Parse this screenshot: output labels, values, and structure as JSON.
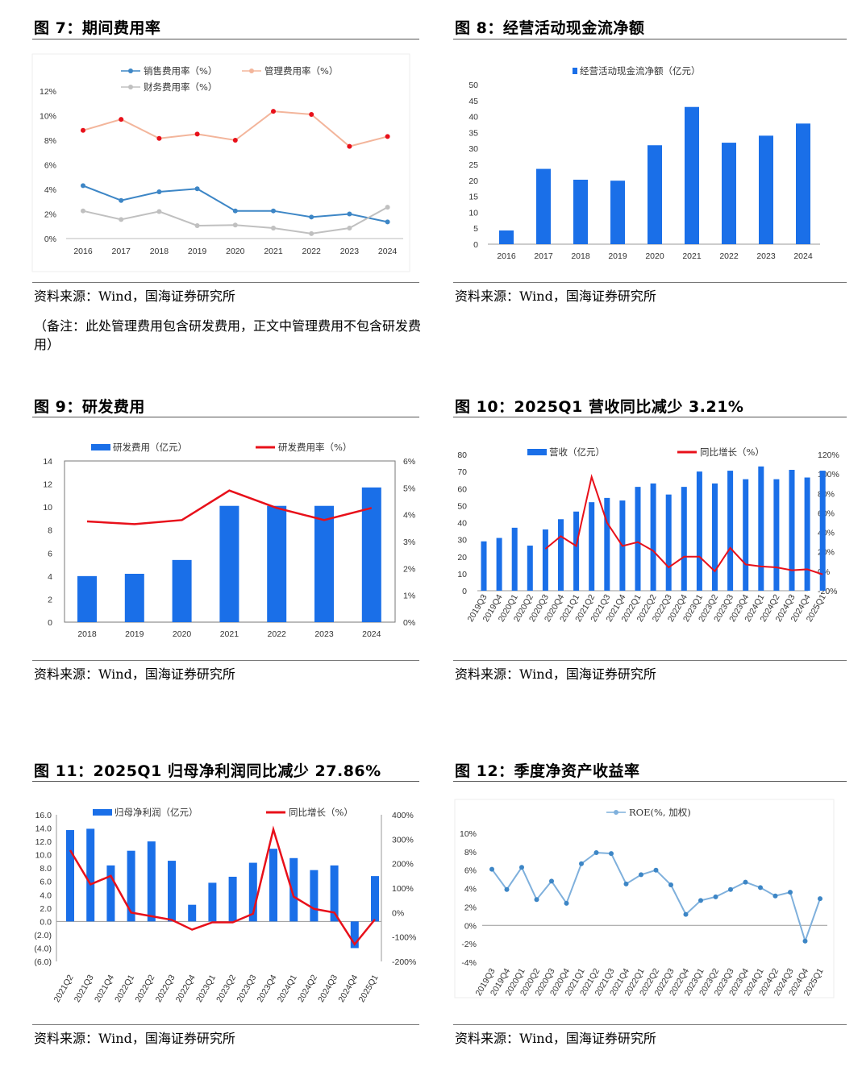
{
  "source_text": "资料来源：Wind，国海证券研究所",
  "note7": "（备注：此处管理费用包含研发费用，正文中管理费用不包含研发费用）",
  "fig7_title": "图 7：期间费用率",
  "fig8_title": "图 8：经营活动现金流净额",
  "fig9_title": "图 9：研发费用",
  "fig10_title": "图 10：2025Q1 营收同比减少 3.21%",
  "fig11_title": "图 11：2025Q1 归母净利润同比减少 27.86%",
  "fig12_title": "图 12：季度净资产收益率",
  "colors": {
    "blue": "#1a6fe8",
    "red": "#e8101a",
    "salmon": "#f3b59b",
    "steel": "#3d86c6",
    "gray": "#c0c0c0",
    "lightblue": "#7fb0dc"
  },
  "chart_data": [
    {
      "id": "fig7",
      "type": "line",
      "categories": [
        "2016",
        "2017",
        "2018",
        "2019",
        "2020",
        "2021",
        "2022",
        "2023",
        "2024"
      ],
      "ylim": [
        0,
        12
      ],
      "yticks": [
        "0%",
        "2%",
        "4%",
        "6%",
        "8%",
        "10%",
        "12%"
      ],
      "grid": false,
      "legend_position": "top",
      "series": [
        {
          "name": "销售费用率（%）",
          "values": [
            4.3,
            3.1,
            3.8,
            4.05,
            2.25,
            2.25,
            1.75,
            2.0,
            1.35
          ]
        },
        {
          "name": "管理费用率（%）",
          "values": [
            8.8,
            9.7,
            8.15,
            8.5,
            8.0,
            10.35,
            10.1,
            7.5,
            8.3
          ]
        },
        {
          "name": "财务费用率（%）",
          "values": [
            2.25,
            1.55,
            2.2,
            1.05,
            1.1,
            0.85,
            0.4,
            0.85,
            2.55
          ]
        }
      ]
    },
    {
      "id": "fig8",
      "type": "bar",
      "categories": [
        "2016",
        "2017",
        "2018",
        "2019",
        "2020",
        "2021",
        "2022",
        "2023",
        "2024"
      ],
      "ylim": [
        0,
        50
      ],
      "yticks": [
        "0",
        "5",
        "10",
        "15",
        "20",
        "25",
        "30",
        "35",
        "40",
        "45",
        "50"
      ],
      "legend_position": "top",
      "series": [
        {
          "name": "经营活动现金流净额（亿元）",
          "values": [
            4.3,
            23.6,
            20.2,
            19.9,
            31.0,
            43.0,
            31.8,
            34.0,
            37.8
          ]
        }
      ]
    },
    {
      "id": "fig9",
      "type": "bar",
      "categories": [
        "2018",
        "2019",
        "2020",
        "2021",
        "2022",
        "2023",
        "2024"
      ],
      "ylim": [
        0,
        14
      ],
      "yticks": [
        "0",
        "2",
        "4",
        "6",
        "8",
        "10",
        "12",
        "14"
      ],
      "y2lim": [
        0,
        6
      ],
      "y2ticks": [
        "0%",
        "1%",
        "2%",
        "3%",
        "4%",
        "5%",
        "6%"
      ],
      "legend_position": "top",
      "series": [
        {
          "name": "研发费用（亿元）",
          "values": [
            4.0,
            4.2,
            5.4,
            10.1,
            10.1,
            10.1,
            11.7
          ],
          "axis": "left"
        },
        {
          "name": "研发费用率（%）",
          "values": [
            3.75,
            3.65,
            3.8,
            4.9,
            4.25,
            3.8,
            4.25
          ],
          "axis": "right"
        }
      ]
    },
    {
      "id": "fig10",
      "type": "bar",
      "categories": [
        "2019Q3",
        "2019Q4",
        "2020Q1",
        "2020Q2",
        "2020Q3",
        "2020Q4",
        "2021Q1",
        "2021Q2",
        "2021Q3",
        "2021Q4",
        "2022Q1",
        "2022Q2",
        "2022Q3",
        "2022Q4",
        "2023Q1",
        "2023Q2",
        "2023Q3",
        "2023Q4",
        "2024Q1",
        "2024Q2",
        "2024Q3",
        "2024Q4",
        "2025Q1"
      ],
      "ylim": [
        0,
        80
      ],
      "yticks": [
        "0",
        "10",
        "20",
        "30",
        "40",
        "50",
        "60",
        "70",
        "80"
      ],
      "y2lim": [
        -20,
        120
      ],
      "y2ticks": [
        "-20%",
        "0%",
        "20%",
        "40%",
        "60%",
        "80%",
        "100%",
        "120%"
      ],
      "legend_position": "top",
      "series": [
        {
          "name": "营收（亿元）",
          "axis": "left",
          "values": [
            29,
            31,
            37,
            26.5,
            36,
            42,
            46.5,
            52,
            54.5,
            53,
            61,
            63,
            56.5,
            61,
            70,
            63,
            70.5,
            65.5,
            73,
            65.5,
            71,
            66.5,
            70.5
          ]
        },
        {
          "name": "同比增长（%）",
          "axis": "right",
          "values": [
            null,
            null,
            null,
            null,
            23,
            36,
            26,
            97,
            50,
            26,
            30,
            21,
            4,
            15,
            15,
            0,
            24,
            7,
            5,
            4,
            1,
            2,
            -3.21
          ]
        }
      ]
    },
    {
      "id": "fig11",
      "type": "bar",
      "categories": [
        "2021Q2",
        "2021Q3",
        "2021Q4",
        "2022Q1",
        "2022Q2",
        "2022Q3",
        "2022Q4",
        "2023Q1",
        "2023Q2",
        "2023Q3",
        "2023Q4",
        "2024Q1",
        "2024Q2",
        "2024Q3",
        "2024Q4",
        "2025Q1"
      ],
      "ylim": [
        -6,
        16
      ],
      "yticks": [
        "(6.0)",
        "(4.0)",
        "(2.0)",
        "0.0",
        "2.0",
        "4.0",
        "6.0",
        "8.0",
        "10.0",
        "12.0",
        "14.0",
        "16.0"
      ],
      "y2lim": [
        -200,
        400
      ],
      "y2ticks": [
        "-200%",
        "-100%",
        "0%",
        "100%",
        "200%",
        "300%",
        "400%"
      ],
      "legend_position": "top",
      "series": [
        {
          "name": "归母净利润（亿元）",
          "axis": "left",
          "values": [
            13.7,
            13.9,
            8.4,
            10.6,
            12.0,
            9.1,
            2.5,
            5.8,
            6.7,
            8.8,
            10.9,
            9.5,
            7.7,
            8.4,
            -4.0,
            6.8
          ]
        },
        {
          "name": "同比增长（%）",
          "axis": "right",
          "values": [
            255,
            115,
            150,
            0,
            -15,
            -30,
            -70,
            -40,
            -40,
            -5,
            340,
            65,
            15,
            0,
            -130,
            -27.86
          ]
        }
      ]
    },
    {
      "id": "fig12",
      "type": "line",
      "categories": [
        "2019Q3",
        "2019Q4",
        "2020Q1",
        "2020Q2",
        "2020Q3",
        "2020Q4",
        "2021Q1",
        "2021Q2",
        "2021Q3",
        "2021Q4",
        "2022Q1",
        "2022Q2",
        "2022Q3",
        "2022Q4",
        "2023Q1",
        "2023Q2",
        "2023Q3",
        "2023Q4",
        "2024Q1",
        "2024Q2",
        "2024Q3",
        "2024Q4",
        "2025Q1"
      ],
      "ylim": [
        -4,
        10
      ],
      "yticks": [
        "-4%",
        "-2%",
        "0%",
        "2%",
        "4%",
        "6%",
        "8%",
        "10%"
      ],
      "legend_position": "top",
      "series": [
        {
          "name": "ROE(%, 加权)",
          "values": [
            6.1,
            3.9,
            6.3,
            2.8,
            4.8,
            2.4,
            6.7,
            7.9,
            7.8,
            4.5,
            5.5,
            6.0,
            4.4,
            1.2,
            2.7,
            3.1,
            3.9,
            4.7,
            4.1,
            3.2,
            3.6,
            -1.7,
            2.9
          ]
        }
      ]
    }
  ]
}
